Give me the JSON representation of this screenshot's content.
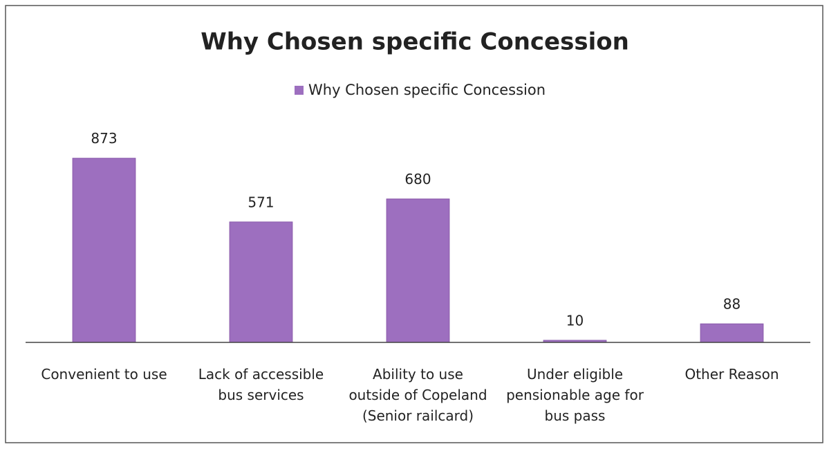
{
  "chart_data": {
    "type": "bar",
    "title": "Why Chosen specific Concession",
    "categories": [
      "Convenient to use",
      "Lack of accessible bus services",
      "Ability to use outside of Copeland (Senior railcard)",
      "Under eligible pensionable age for bus pass",
      "Other Reason"
    ],
    "series": [
      {
        "name": "Why Chosen specific Concession",
        "color": "#9d6fbf",
        "values": [
          873,
          571,
          680,
          10,
          88
        ]
      }
    ],
    "ylim": [
      0,
      1000
    ],
    "legend": "top"
  }
}
